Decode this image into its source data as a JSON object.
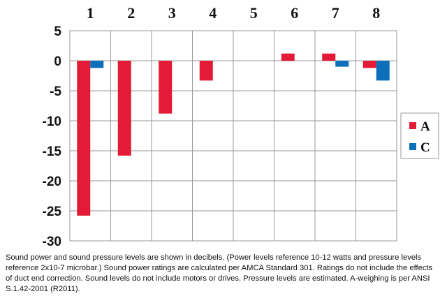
{
  "chart_data": {
    "type": "bar",
    "categories": [
      "1",
      "2",
      "3",
      "4",
      "5",
      "6",
      "7",
      "8"
    ],
    "series": [
      {
        "name": "A",
        "color": "#e31b36",
        "values": [
          -25.8,
          -15.8,
          -8.8,
          -3.3,
          0,
          1.2,
          1.2,
          -1.2
        ]
      },
      {
        "name": "C",
        "color": "#0b6fba",
        "values": [
          -1.2,
          0,
          0,
          0,
          0,
          0,
          -1.0,
          -3.3
        ]
      }
    ],
    "ylim": [
      -30,
      5
    ],
    "yticks": [
      5,
      0,
      -5,
      -10,
      -15,
      -20,
      -25,
      -30
    ],
    "grid": true,
    "legend_position": "right"
  },
  "footnote": "Sound power and sound pressure levels are shown in decibels. (Power levels reference 10-12 watts and pressure levels reference 2x10-7 microbar.) Sound power ratings are calculated per AMCA Standard 301. Ratings do not include the effects of duct end correction. Sound levels do not include motors or drives. Pressure levels are estimated. A-weighing is per ANSI S.1.42-2001 (R2011)."
}
